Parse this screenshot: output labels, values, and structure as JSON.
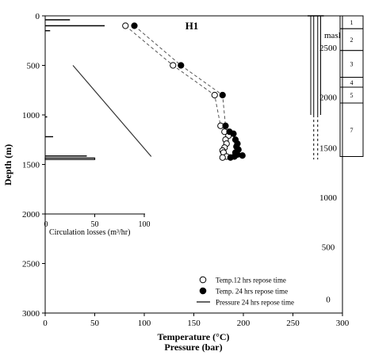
{
  "chart_data": {
    "type": "scatter",
    "title": "H1",
    "xlabel": "Temperature (°C)",
    "xlabel2": "Pressure (bar)",
    "ylabel": "Depth (m)",
    "xlim": [
      0,
      300
    ],
    "ylim": [
      3000,
      0
    ],
    "x_ticks": [
      0,
      50,
      100,
      150,
      200,
      250,
      300
    ],
    "y_ticks": [
      0,
      500,
      1000,
      1500,
      2000,
      2500,
      3000
    ],
    "series": [
      {
        "name": "Temp.12 hrs repose time",
        "marker": "open-circle",
        "points": [
          [
            81,
            100
          ],
          [
            129,
            500
          ],
          [
            171,
            800
          ],
          [
            177,
            1110
          ],
          [
            181,
            1170
          ],
          [
            185,
            1210
          ],
          [
            182,
            1250
          ],
          [
            183,
            1290
          ],
          [
            181,
            1330
          ],
          [
            179,
            1360
          ],
          [
            180,
            1380
          ],
          [
            183,
            1420
          ],
          [
            179,
            1430
          ]
        ]
      },
      {
        "name": "Temp. 24 hrs repose time",
        "marker": "filled-circle",
        "points": [
          [
            90,
            100
          ],
          [
            137,
            500
          ],
          [
            179,
            800
          ],
          [
            182,
            1110
          ],
          [
            186,
            1170
          ],
          [
            190,
            1190
          ],
          [
            192,
            1250
          ],
          [
            194,
            1290
          ],
          [
            193,
            1320
          ],
          [
            195,
            1350
          ],
          [
            192,
            1380
          ],
          [
            194,
            1400
          ],
          [
            199,
            1410
          ],
          [
            191,
            1420
          ],
          [
            187,
            1430
          ]
        ]
      },
      {
        "name": "Pressure 24 hrs repose time",
        "marker": "line",
        "points": [
          [
            28,
            500
          ],
          [
            107,
            1420
          ]
        ]
      }
    ],
    "circulation_losses": {
      "xlabel": "Circulation losses (m³/hr)",
      "ticks": [
        0,
        50,
        100
      ],
      "xlim": [
        0,
        100
      ],
      "bars": [
        {
          "depth_from": 40,
          "depth_to": 40,
          "value": 25
        },
        {
          "depth_from": 100,
          "depth_to": 110,
          "value": 60
        },
        {
          "depth_from": 150,
          "depth_to": 150,
          "value": 5
        },
        {
          "depth_from": 1020,
          "depth_to": 1020,
          "value": 2
        },
        {
          "depth_from": 1220,
          "depth_to": 1220,
          "value": 8
        },
        {
          "depth_from": 1415,
          "depth_to": 1415,
          "value": 42
        },
        {
          "depth_from": 1435,
          "depth_to": 1450,
          "value": 50
        }
      ]
    },
    "elevation_axis": {
      "label": "masl",
      "ticks": [
        {
          "value": 2500,
          "depth": 320
        },
        {
          "value": 2000,
          "depth": 820
        },
        {
          "value": 1500,
          "depth": 1330
        },
        {
          "value": 1000,
          "depth": 1830
        },
        {
          "value": 500,
          "depth": 2330
        },
        {
          "value": 0,
          "depth": 2860
        }
      ]
    },
    "well_casing": {
      "outer_x": [
        268,
        278
      ],
      "inner_x": [
        271,
        275
      ],
      "outer_bottom_depth": 1000,
      "inner_bottom_depth": 1450
    },
    "lithology_column": {
      "units": [
        {
          "label": "1",
          "from": 0,
          "to": 130
        },
        {
          "label": "2",
          "from": 130,
          "to": 350
        },
        {
          "label": "3",
          "from": 350,
          "to": 620
        },
        {
          "label": "4",
          "from": 620,
          "to": 720
        },
        {
          "label": "5",
          "from": 720,
          "to": 880
        },
        {
          "label": "7",
          "from": 880,
          "to": 1420
        }
      ]
    },
    "legend_placement": "bottom-right",
    "grid": false
  }
}
